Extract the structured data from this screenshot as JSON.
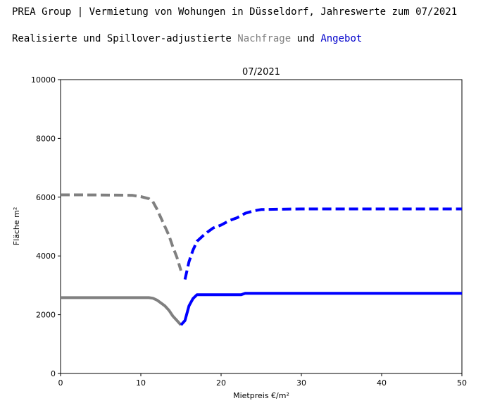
{
  "header": {
    "title": "PREA Group | Vermietung von Wohungen in Düsseldorf, Jahreswerte zum 07/2021",
    "subtitle_prefix": "Realisierte und Spillover-adjustierte ",
    "subtitle_demand": "Nachfrage",
    "subtitle_mid": " und ",
    "subtitle_supply": "Angebot",
    "demand_color": "#808080",
    "supply_color": "#0000cc"
  },
  "chart_data": {
    "type": "line",
    "title": "07/2021",
    "xlabel": "Mietpreis €/m²",
    "ylabel": "Fläche m²",
    "xlim": [
      0,
      50
    ],
    "ylim": [
      0,
      10000
    ],
    "xticks": [
      "0",
      "10",
      "20",
      "30",
      "40",
      "50"
    ],
    "yticks": [
      "0",
      "2000",
      "4000",
      "6000",
      "8000",
      "10000"
    ],
    "grid": false,
    "series": [
      {
        "style": "dashed",
        "color": "#808080",
        "x": [
          0,
          2,
          5,
          7,
          9,
          10,
          11,
          11.5,
          12,
          12.5,
          13,
          13.5,
          14,
          14.5,
          15
        ],
        "y": [
          6080,
          6080,
          6075,
          6070,
          6060,
          6020,
          5950,
          5850,
          5600,
          5300,
          5000,
          4700,
          4300,
          3950,
          3500
        ]
      },
      {
        "style": "dashed",
        "color": "#0000ff",
        "x": [
          15.5,
          16,
          16.5,
          17,
          18,
          19,
          20,
          21,
          22,
          23,
          24,
          25,
          27,
          30,
          40,
          50
        ],
        "y": [
          3200,
          3800,
          4200,
          4500,
          4750,
          4950,
          5050,
          5200,
          5300,
          5450,
          5530,
          5580,
          5590,
          5600,
          5600,
          5600
        ]
      },
      {
        "style": "solid",
        "color": "#808080",
        "x": [
          0,
          5,
          10,
          11,
          11.5,
          12,
          12.5,
          13,
          13.5,
          14,
          14.5,
          15
        ],
        "y": [
          2580,
          2580,
          2580,
          2580,
          2560,
          2500,
          2400,
          2300,
          2150,
          1950,
          1800,
          1650
        ]
      },
      {
        "style": "solid",
        "color": "#0000ff",
        "x": [
          15,
          15.5,
          16,
          16.5,
          17,
          18,
          20,
          22.5,
          23,
          25,
          30,
          40,
          50
        ],
        "y": [
          1650,
          1800,
          2300,
          2550,
          2680,
          2680,
          2680,
          2680,
          2730,
          2730,
          2730,
          2730,
          2730
        ]
      }
    ]
  }
}
